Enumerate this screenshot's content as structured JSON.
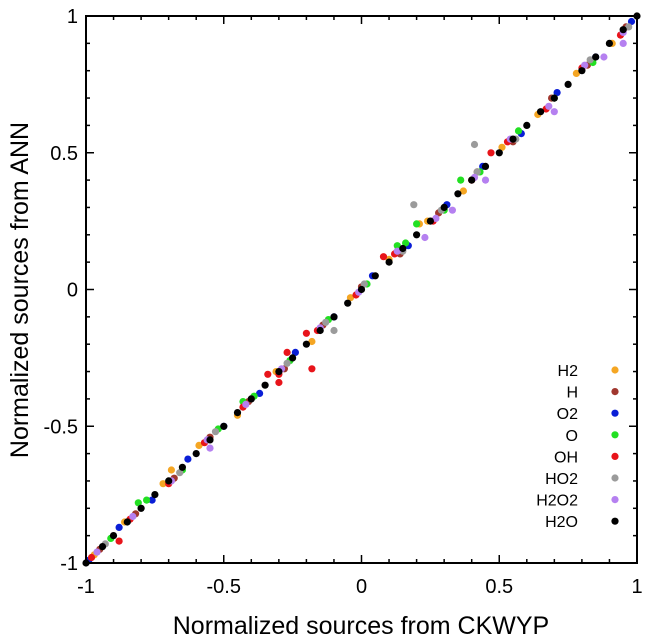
{
  "chart_data": {
    "type": "scatter",
    "title": "",
    "xlabel": "Normalized sources from CKWYP",
    "ylabel": "Normalized sources from ANN",
    "xlim": [
      -1,
      1
    ],
    "ylim": [
      -1,
      1
    ],
    "x_ticks": [
      -1,
      -0.5,
      0,
      0.5,
      1
    ],
    "y_ticks": [
      -1,
      -0.5,
      0,
      0.5,
      1
    ],
    "x_tick_labels": [
      "-1",
      "-0.5",
      "0",
      "0.5",
      "1"
    ],
    "y_tick_labels": [
      "-1",
      "-0.5",
      "0",
      "0.5",
      "1"
    ],
    "grid": false,
    "legend_position": "bottom-right",
    "series": [
      {
        "name": "H2",
        "color": "#f5a623",
        "points": [
          [
            -0.97,
            -0.97
          ],
          [
            -0.86,
            -0.85
          ],
          [
            -0.72,
            -0.71
          ],
          [
            -0.59,
            -0.57
          ],
          [
            -0.45,
            -0.46
          ],
          [
            -0.31,
            -0.3
          ],
          [
            -0.18,
            -0.19
          ],
          [
            -0.04,
            -0.03
          ],
          [
            0.1,
            0.11
          ],
          [
            0.24,
            0.25
          ],
          [
            0.37,
            0.36
          ],
          [
            0.51,
            0.52
          ],
          [
            0.64,
            0.64
          ],
          [
            0.78,
            0.79
          ],
          [
            0.91,
            0.9
          ],
          [
            -0.69,
            -0.66
          ],
          [
            0.21,
            0.24
          ]
        ]
      },
      {
        "name": "H",
        "color": "#a0372e",
        "points": [
          [
            -0.95,
            -0.95
          ],
          [
            -0.82,
            -0.82
          ],
          [
            -0.68,
            -0.69
          ],
          [
            -0.55,
            -0.54
          ],
          [
            -0.41,
            -0.41
          ],
          [
            -0.28,
            -0.29
          ],
          [
            -0.14,
            -0.13
          ],
          [
            0.0,
            0.01
          ],
          [
            0.14,
            0.13
          ],
          [
            0.28,
            0.28
          ],
          [
            0.42,
            0.43
          ],
          [
            0.55,
            0.54
          ],
          [
            0.69,
            0.7
          ],
          [
            0.82,
            0.82
          ],
          [
            0.96,
            0.96
          ]
        ]
      },
      {
        "name": "O2",
        "color": "#0a1ed6",
        "points": [
          [
            -0.99,
            -0.99
          ],
          [
            -0.88,
            -0.87
          ],
          [
            -0.76,
            -0.77
          ],
          [
            -0.63,
            -0.62
          ],
          [
            -0.5,
            -0.5
          ],
          [
            -0.37,
            -0.38
          ],
          [
            -0.24,
            -0.23
          ],
          [
            -0.1,
            -0.1
          ],
          [
            0.04,
            0.05
          ],
          [
            0.17,
            0.16
          ],
          [
            0.31,
            0.31
          ],
          [
            0.44,
            0.45
          ],
          [
            0.58,
            0.57
          ],
          [
            0.71,
            0.72
          ],
          [
            0.85,
            0.85
          ],
          [
            0.98,
            0.98
          ]
        ]
      },
      {
        "name": "O",
        "color": "#22e022",
        "points": [
          [
            -0.91,
            -0.91
          ],
          [
            -0.78,
            -0.77
          ],
          [
            -0.65,
            -0.66
          ],
          [
            -0.52,
            -0.51
          ],
          [
            -0.39,
            -0.39
          ],
          [
            -0.26,
            -0.26
          ],
          [
            -0.12,
            -0.11
          ],
          [
            0.02,
            0.02
          ],
          [
            0.16,
            0.17
          ],
          [
            0.3,
            0.29
          ],
          [
            0.43,
            0.43
          ],
          [
            0.57,
            0.58
          ],
          [
            0.7,
            0.7
          ],
          [
            0.84,
            0.83
          ],
          [
            -0.81,
            -0.78
          ],
          [
            -0.43,
            -0.41
          ],
          [
            0.13,
            0.16
          ],
          [
            0.2,
            0.24
          ],
          [
            0.36,
            0.4
          ]
        ]
      },
      {
        "name": "OH",
        "color": "#e8141a",
        "points": [
          [
            -0.98,
            -0.98
          ],
          [
            -0.84,
            -0.84
          ],
          [
            -0.7,
            -0.71
          ],
          [
            -0.57,
            -0.56
          ],
          [
            -0.43,
            -0.43
          ],
          [
            -0.3,
            -0.31
          ],
          [
            -0.16,
            -0.15
          ],
          [
            -0.02,
            -0.02
          ],
          [
            0.12,
            0.13
          ],
          [
            0.26,
            0.25
          ],
          [
            0.4,
            0.4
          ],
          [
            0.53,
            0.54
          ],
          [
            0.67,
            0.66
          ],
          [
            0.8,
            0.81
          ],
          [
            0.94,
            0.93
          ],
          [
            -0.27,
            -0.23
          ],
          [
            -0.2,
            -0.16
          ],
          [
            -0.18,
            -0.29
          ],
          [
            -0.3,
            -0.34
          ],
          [
            -0.34,
            -0.31
          ],
          [
            -0.88,
            -0.92
          ],
          [
            0.47,
            0.5
          ],
          [
            0.08,
            0.12
          ]
        ]
      },
      {
        "name": "HO2",
        "color": "#9b9b9b",
        "points": [
          [
            -0.93,
            -0.93
          ],
          [
            -0.8,
            -0.8
          ],
          [
            -0.66,
            -0.67
          ],
          [
            -0.53,
            -0.52
          ],
          [
            -0.4,
            -0.4
          ],
          [
            -0.27,
            -0.27
          ],
          [
            -0.13,
            -0.12
          ],
          [
            0.01,
            0.02
          ],
          [
            0.15,
            0.14
          ],
          [
            0.29,
            0.29
          ],
          [
            0.42,
            0.43
          ],
          [
            0.56,
            0.55
          ],
          [
            0.7,
            0.7
          ],
          [
            0.83,
            0.84
          ],
          [
            0.97,
            0.96
          ],
          [
            0.19,
            0.31
          ],
          [
            0.41,
            0.53
          ],
          [
            -0.1,
            -0.15
          ]
        ]
      },
      {
        "name": "H2O2",
        "color": "#b580f0",
        "points": [
          [
            -0.96,
            -0.96
          ],
          [
            -0.83,
            -0.83
          ],
          [
            -0.69,
            -0.7
          ],
          [
            -0.56,
            -0.55
          ],
          [
            -0.42,
            -0.42
          ],
          [
            -0.29,
            -0.29
          ],
          [
            -0.15,
            -0.14
          ],
          [
            -0.01,
            -0.01
          ],
          [
            0.13,
            0.14
          ],
          [
            0.27,
            0.26
          ],
          [
            0.41,
            0.41
          ],
          [
            0.54,
            0.55
          ],
          [
            0.68,
            0.67
          ],
          [
            0.81,
            0.82
          ],
          [
            0.95,
            0.94
          ],
          [
            0.23,
            0.19
          ],
          [
            0.45,
            0.4
          ],
          [
            0.7,
            0.65
          ],
          [
            0.88,
            0.85
          ],
          [
            0.33,
            0.29
          ],
          [
            -0.55,
            -0.58
          ],
          [
            0.95,
            0.9
          ]
        ]
      },
      {
        "name": "H2O",
        "color": "#000000",
        "points": [
          [
            -1.0,
            -1.0
          ],
          [
            -0.94,
            -0.94
          ],
          [
            -0.9,
            -0.9
          ],
          [
            -0.85,
            -0.85
          ],
          [
            -0.8,
            -0.8
          ],
          [
            -0.75,
            -0.75
          ],
          [
            -0.7,
            -0.7
          ],
          [
            -0.65,
            -0.65
          ],
          [
            -0.6,
            -0.6
          ],
          [
            -0.55,
            -0.55
          ],
          [
            -0.5,
            -0.5
          ],
          [
            -0.45,
            -0.45
          ],
          [
            -0.4,
            -0.4
          ],
          [
            -0.35,
            -0.35
          ],
          [
            -0.3,
            -0.3
          ],
          [
            -0.25,
            -0.25
          ],
          [
            -0.2,
            -0.2
          ],
          [
            -0.15,
            -0.15
          ],
          [
            -0.1,
            -0.1
          ],
          [
            -0.05,
            -0.05
          ],
          [
            0.0,
            0.0
          ],
          [
            0.05,
            0.05
          ],
          [
            0.1,
            0.1
          ],
          [
            0.15,
            0.15
          ],
          [
            0.2,
            0.2
          ],
          [
            0.25,
            0.25
          ],
          [
            0.3,
            0.3
          ],
          [
            0.35,
            0.35
          ],
          [
            0.4,
            0.4
          ],
          [
            0.45,
            0.45
          ],
          [
            0.5,
            0.5
          ],
          [
            0.55,
            0.55
          ],
          [
            0.6,
            0.6
          ],
          [
            0.65,
            0.65
          ],
          [
            0.7,
            0.7
          ],
          [
            0.75,
            0.75
          ],
          [
            0.8,
            0.8
          ],
          [
            0.85,
            0.85
          ],
          [
            0.9,
            0.9
          ],
          [
            0.95,
            0.95
          ],
          [
            1.0,
            1.0
          ]
        ]
      }
    ]
  }
}
